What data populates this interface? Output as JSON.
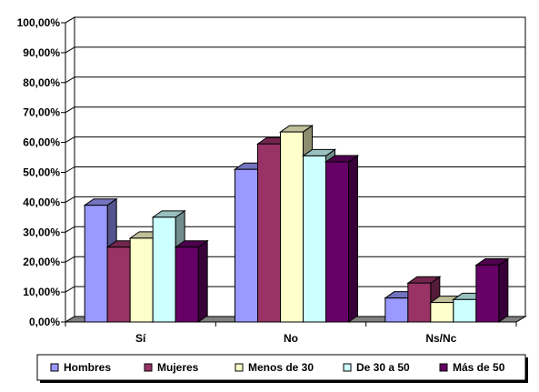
{
  "chart_data": {
    "type": "bar",
    "style": "3d-clustered-column",
    "categories": [
      "Sí",
      "No",
      "Ns/Nc"
    ],
    "series": [
      {
        "name": "Hombres",
        "values": [
          39.0,
          51.0,
          8.0
        ],
        "color": "#9999FF"
      },
      {
        "name": "Mujeres",
        "values": [
          25.0,
          59.5,
          13.0
        ],
        "color": "#993366"
      },
      {
        "name": "Menos de 30",
        "values": [
          28.0,
          63.5,
          6.5
        ],
        "color": "#FFFFCC"
      },
      {
        "name": "De 30 a 50",
        "values": [
          35.0,
          55.5,
          7.5
        ],
        "color": "#CCFFFF"
      },
      {
        "name": "Más de 50",
        "values": [
          25.0,
          53.5,
          19.0
        ],
        "color": "#660066"
      }
    ],
    "ylim": [
      0,
      100
    ],
    "yticks": [
      "0,00%",
      "10,00%",
      "20,00%",
      "30,00%",
      "40,00%",
      "50,00%",
      "60,00%",
      "70,00%",
      "80,00%",
      "90,00%",
      "100,00%"
    ],
    "grid": true,
    "legend_position": "bottom",
    "title": "",
    "xlabel": "",
    "ylabel": ""
  }
}
